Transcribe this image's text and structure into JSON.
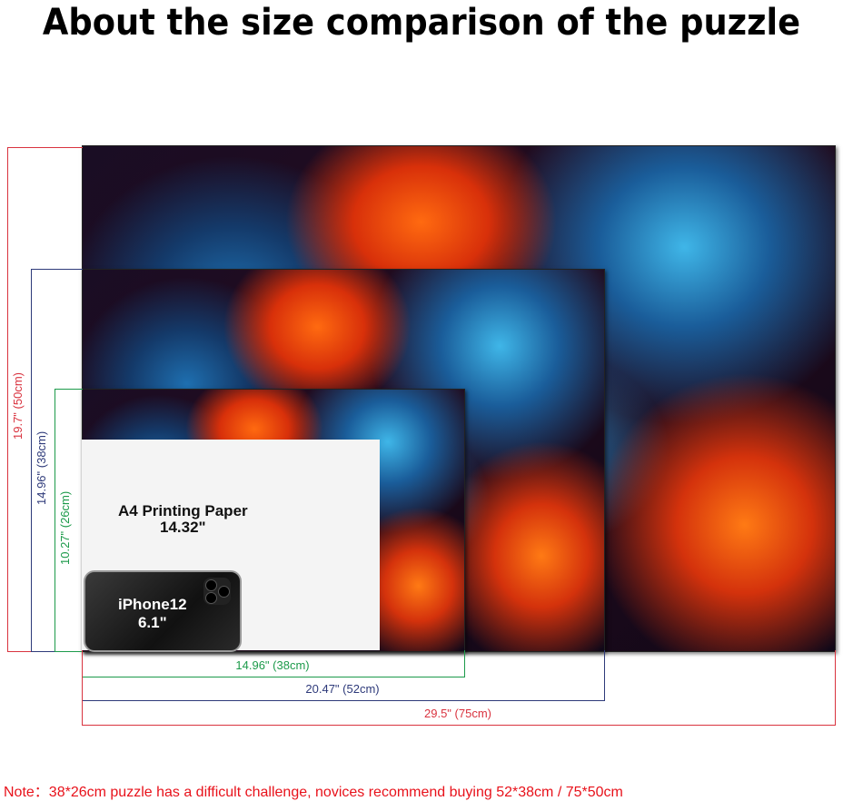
{
  "title": "About the size comparison of the puzzle",
  "colors": {
    "large": "#d9333f",
    "medium": "#2e3a7a",
    "small": "#1c9a4a",
    "note": "#e8121b"
  },
  "puzzles": {
    "large": {
      "height_label": "19.7\" (50cm)",
      "width_label": "29.5\" (75cm)"
    },
    "medium": {
      "height_label": "14.96\" (38cm)",
      "width_label": "20.47\" (52cm)"
    },
    "small": {
      "height_label": "10.27\" (26cm)",
      "width_label": "14.96\" (38cm)"
    }
  },
  "a4": {
    "line1": "A4 Printing Paper",
    "line2": "14.32\""
  },
  "iphone": {
    "line1": "iPhone12",
    "line2": "6.1\""
  },
  "note": "Note：38*26cm puzzle has a difficult challenge, novices recommend buying 52*38cm / 75*50cm"
}
